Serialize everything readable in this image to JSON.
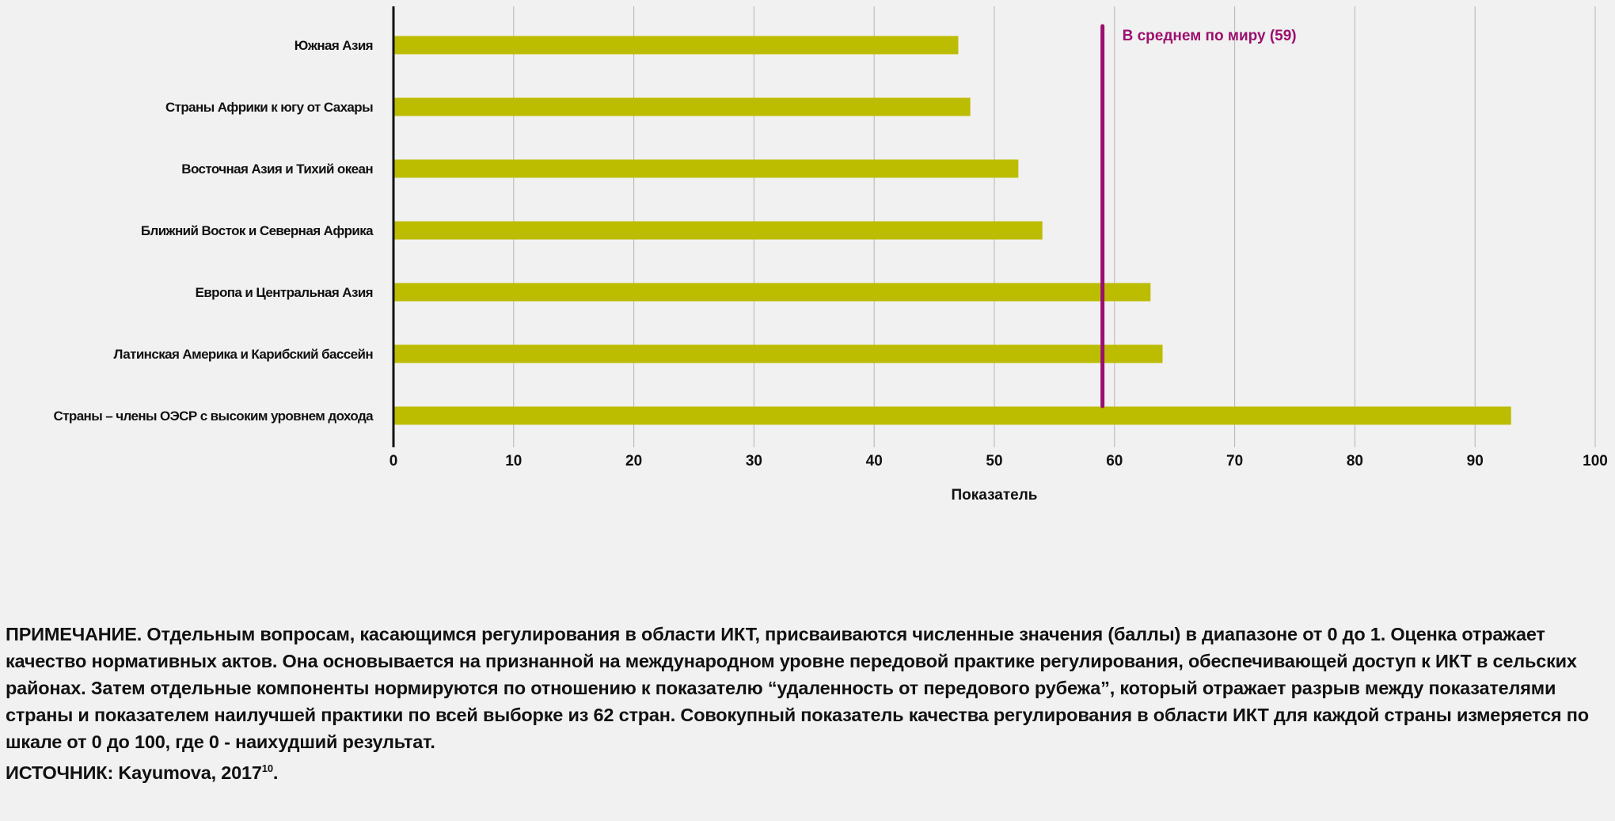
{
  "chart_data": {
    "type": "bar",
    "orientation": "horizontal",
    "categories": [
      "Южная Азия",
      "Страны Африки к югу от Сахары",
      "Восточная Азия и Тихий океан",
      "Ближний Восток и Северная Африка",
      "Европа и Центральная Азия",
      "Латинская Америка и Карибский бассейн",
      "Страны – члены ОЭСР с высоким уровнем дохода"
    ],
    "values": [
      47,
      48,
      52,
      54,
      63,
      64,
      93
    ],
    "xlabel": "Показатель",
    "ylabel": "",
    "xlim": [
      0,
      100
    ],
    "xticks": [
      "0",
      "10",
      "20",
      "30",
      "40",
      "50",
      "60",
      "70",
      "80",
      "90",
      "100"
    ],
    "grid": true,
    "bar_color": "#bcbc00",
    "reference_line": {
      "value": 59,
      "label": "В среднем по миру (59)",
      "color": "#9b0f6e"
    }
  },
  "note": {
    "text": "ПРИМЕЧАНИЕ. Отдельным вопросам, касающимся регулирования в области ИКТ, присваиваются численные значения (баллы) в диапазоне от 0 до 1. Оценка отражает качество нормативных актов. Она основывается на признанной на международном уровне передовой практике регулирования, обеспечивающей доступ к ИКТ в сельских районах. Затем отдельные компоненты нормируются по отношению к показателю “удаленность от передового рубежа”, который отражает разрыв между показателями страны и показателем наилучшей практики по всей выборке из 62 стран. Совокупный показатель качества регулирования в области ИКТ для каждой страны измеряется по шкале от 0 до 100, где 0 - наихудший результат.",
    "source": "ИСТОЧНИК: Kayumova, 2017",
    "source_ref": "10",
    "source_end": "."
  }
}
